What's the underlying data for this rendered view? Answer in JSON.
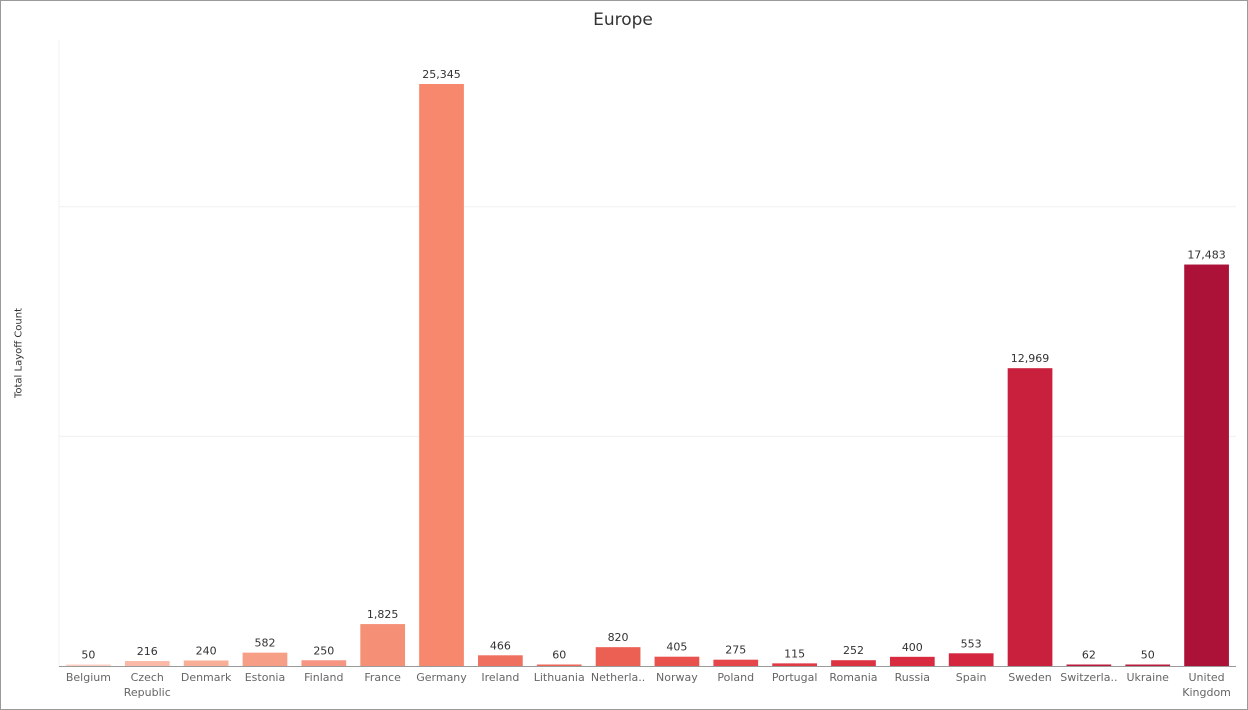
{
  "chart_data": {
    "type": "bar",
    "title": "Europe",
    "xlabel": "",
    "ylabel": "Total Layoff Count",
    "ylim": [
      0,
      27000
    ],
    "grid": true,
    "categories": [
      "Belgium",
      "Czech Republic",
      "Denmark",
      "Estonia",
      "Finland",
      "France",
      "Germany",
      "Ireland",
      "Lithuania",
      "Netherla..",
      "Norway",
      "Poland",
      "Portugal",
      "Romania",
      "Russia",
      "Spain",
      "Sweden",
      "Switzerla..",
      "Ukraine",
      "United Kingdom"
    ],
    "values": [
      50,
      216,
      240,
      582,
      250,
      1825,
      25345,
      466,
      60,
      820,
      405,
      275,
      115,
      252,
      400,
      553,
      12969,
      62,
      50,
      17483
    ],
    "value_labels": [
      "50",
      "216",
      "240",
      "582",
      "250",
      "1,825",
      "25,345",
      "466",
      "60",
      "820",
      "405",
      "275",
      "115",
      "252",
      "400",
      "553",
      "12,969",
      "62",
      "50",
      "17,483"
    ],
    "tick_labels": [
      [
        "Belgium"
      ],
      [
        "Czech",
        "Republic"
      ],
      [
        "Denmark"
      ],
      [
        "Estonia"
      ],
      [
        "Finland"
      ],
      [
        "France"
      ],
      [
        "Germany"
      ],
      [
        "Ireland"
      ],
      [
        "Lithuania"
      ],
      [
        "Netherla.."
      ],
      [
        "Norway"
      ],
      [
        "Poland"
      ],
      [
        "Portugal"
      ],
      [
        "Romania"
      ],
      [
        "Russia"
      ],
      [
        "Spain"
      ],
      [
        "Sweden"
      ],
      [
        "Switzerla.."
      ],
      [
        "Ukraine"
      ],
      [
        "United",
        "Kingdom"
      ]
    ],
    "colors": [
      "#fbcfc1",
      "#fbbaa7",
      "#f9ae98",
      "#f79f86",
      "#f69582",
      "#f58f76",
      "#f7876d",
      "#f07060",
      "#ee6656",
      "#ec5f53",
      "#e8514c",
      "#e4464a",
      "#e03b45",
      "#dc3343",
      "#d82b40",
      "#d4263f",
      "#c9213d",
      "#bc1a3b",
      "#bb1b3c",
      "#ac1238"
    ],
    "axis_color": "#9a9a9a",
    "grid_color": "#f0f0f0"
  }
}
